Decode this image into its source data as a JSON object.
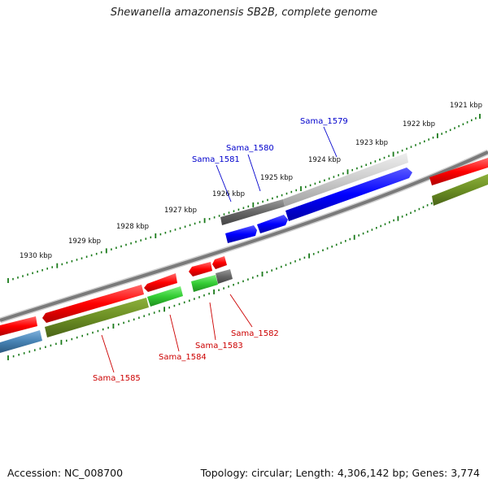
{
  "title": "Shewanella amazonensis SB2B, complete genome",
  "footer": {
    "accession_label": "Accession:",
    "accession": "NC_008700",
    "topology_label": "Topology:",
    "topology": "circular",
    "length_label": "Length:",
    "length": "4,306,142 bp",
    "genes_label": "Genes:",
    "genes": "3,774"
  },
  "scale": {
    "unit": "kbp",
    "labels": [
      "1921 kbp",
      "1922 kbp",
      "1923 kbp",
      "1924 kbp",
      "1925 kbp",
      "1926 kbp",
      "1927 kbp",
      "1928 kbp",
      "1929 kbp",
      "1930 kbp"
    ]
  },
  "genes_forward": [
    {
      "id": "Sama_1579",
      "color": "#0000ff"
    },
    {
      "id": "Sama_1580",
      "color": "#0000ff"
    },
    {
      "id": "Sama_1581",
      "color": "#0000ff"
    }
  ],
  "genes_reverse": [
    {
      "id": "Sama_1582",
      "color": "#ff0000"
    },
    {
      "id": "Sama_1583",
      "color": "#ff0000"
    },
    {
      "id": "Sama_1584",
      "color": "#ff0000"
    },
    {
      "id": "Sama_1585",
      "color": "#ff0000"
    }
  ],
  "colors": {
    "forward_cds": "#0000ff",
    "reverse_cds": "#ff0000",
    "backbone": "#888888",
    "scale_ticks": "#1a7a1a",
    "olive_track": "#6b8e23",
    "green_track": "#33cc33",
    "steel_blue_track": "#4682b4",
    "gray_track": "#666666",
    "light_gray_track": "#cccccc"
  }
}
